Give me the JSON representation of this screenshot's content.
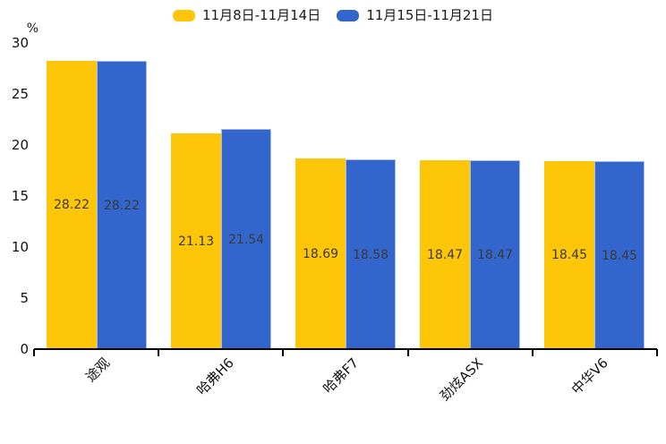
{
  "chart_data": {
    "type": "bar",
    "title": "",
    "unit_label": "%",
    "categories": [
      "途观",
      "哈弗H6",
      "哈弗F7",
      "劲炫ASX",
      "中华V6"
    ],
    "series": [
      {
        "name": "11月8日-11月14日",
        "color": "#FDC608",
        "values": [
          28.22,
          21.13,
          18.69,
          18.47,
          18.45
        ]
      },
      {
        "name": "11月15日-11月21日",
        "color": "#3366CC",
        "values": [
          28.22,
          21.54,
          18.58,
          18.47,
          18.45
        ]
      }
    ],
    "ylim": [
      0,
      30
    ],
    "yticks": [
      0,
      5,
      10,
      15,
      20,
      25,
      30
    ],
    "legend_position": "top",
    "grid": false,
    "value_labels_visible": true,
    "value_label_format": "2dp",
    "value_label_color": "#3a3a3a",
    "axis_color": "#000000",
    "x_labels_rotation_deg": -45
  }
}
